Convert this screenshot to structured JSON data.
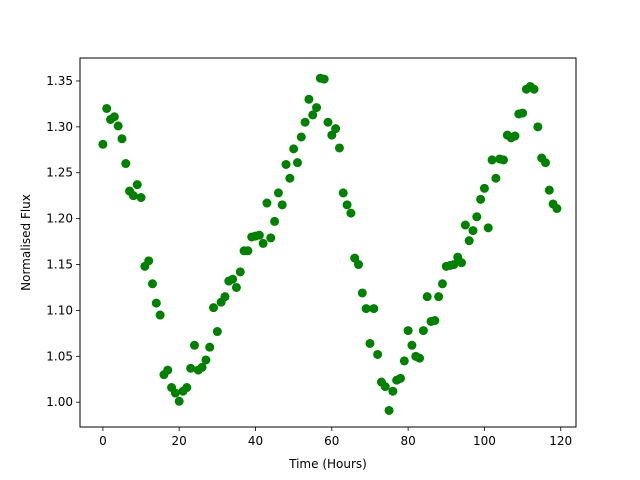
{
  "chart_data": {
    "type": "scatter",
    "xlabel": "Time (Hours)",
    "ylabel": "Normalised Flux",
    "xlim": [
      -6,
      124
    ],
    "ylim": [
      0.973,
      1.375
    ],
    "xticks": [
      0,
      20,
      40,
      60,
      80,
      100,
      120
    ],
    "yticks": [
      1.0,
      1.05,
      1.1,
      1.15,
      1.2,
      1.25,
      1.3,
      1.35
    ],
    "grid": false,
    "legend": "none",
    "marker_color": "#008000",
    "series": [
      {
        "x": [
          0,
          1,
          2,
          3,
          4,
          5,
          6,
          7,
          8,
          9,
          10,
          11,
          12,
          13,
          14,
          15,
          16,
          17,
          18,
          19,
          20,
          21,
          22,
          23,
          24,
          25,
          26,
          27,
          28,
          29,
          30,
          31,
          32,
          33,
          34,
          35,
          36,
          37,
          38,
          39,
          40,
          41,
          42,
          43,
          44,
          45,
          46,
          47,
          48,
          49,
          50,
          51,
          52,
          53,
          54,
          55,
          56,
          57,
          58,
          59,
          60,
          61,
          62,
          63,
          64,
          65,
          66,
          67,
          68,
          69,
          70,
          71,
          72,
          73,
          74,
          75,
          76,
          77,
          78,
          79,
          80,
          81,
          82,
          83,
          84,
          85,
          86,
          87,
          88,
          89,
          90,
          91,
          92,
          93,
          94,
          95,
          96,
          97,
          98,
          99,
          100,
          101,
          102,
          103,
          104,
          105,
          106,
          107,
          108,
          109,
          110,
          111,
          112,
          113,
          114,
          115,
          116,
          117,
          118,
          119
        ],
        "y": [
          1.281,
          1.32,
          1.308,
          1.311,
          1.301,
          1.287,
          1.26,
          1.23,
          1.225,
          1.237,
          1.223,
          1.148,
          1.154,
          1.129,
          1.108,
          1.095,
          1.03,
          1.035,
          1.016,
          1.01,
          1.001,
          1.012,
          1.016,
          1.037,
          1.062,
          1.035,
          1.038,
          1.046,
          1.06,
          1.103,
          1.077,
          1.109,
          1.115,
          1.132,
          1.134,
          1.125,
          1.142,
          1.165,
          1.165,
          1.18,
          1.181,
          1.182,
          1.173,
          1.217,
          1.179,
          1.197,
          1.228,
          1.215,
          1.259,
          1.244,
          1.276,
          1.261,
          1.289,
          1.305,
          1.33,
          1.313,
          1.321,
          1.353,
          1.352,
          1.305,
          1.291,
          1.298,
          1.277,
          1.228,
          1.215,
          1.206,
          1.157,
          1.15,
          1.119,
          1.102,
          1.064,
          1.102,
          1.052,
          1.022,
          1.017,
          0.991,
          1.012,
          1.024,
          1.026,
          1.045,
          1.078,
          1.062,
          1.05,
          1.048,
          1.078,
          1.115,
          1.088,
          1.089,
          1.115,
          1.129,
          1.148,
          1.149,
          1.15,
          1.158,
          1.152,
          1.193,
          1.176,
          1.187,
          1.202,
          1.221,
          1.233,
          1.19,
          1.264,
          1.244,
          1.265,
          1.264,
          1.291,
          1.288,
          1.29,
          1.314,
          1.315,
          1.341,
          1.344,
          1.341,
          1.3,
          1.266,
          1.261,
          1.231,
          1.216,
          1.211
        ]
      }
    ]
  }
}
